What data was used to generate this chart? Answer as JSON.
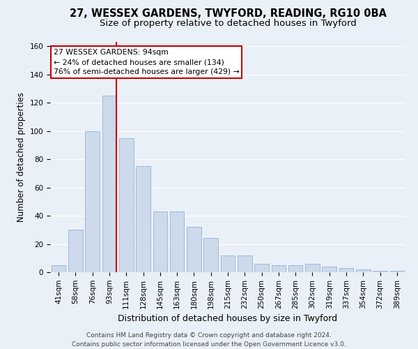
{
  "title_line1": "27, WESSEX GARDENS, TWYFORD, READING, RG10 0BA",
  "title_line2": "Size of property relative to detached houses in Twyford",
  "xlabel": "Distribution of detached houses by size in Twyford",
  "ylabel": "Number of detached properties",
  "categories": [
    "41sqm",
    "58sqm",
    "76sqm",
    "93sqm",
    "111sqm",
    "128sqm",
    "145sqm",
    "163sqm",
    "180sqm",
    "198sqm",
    "215sqm",
    "232sqm",
    "250sqm",
    "267sqm",
    "285sqm",
    "302sqm",
    "319sqm",
    "337sqm",
    "354sqm",
    "372sqm",
    "389sqm"
  ],
  "values": [
    5,
    30,
    100,
    125,
    95,
    75,
    43,
    43,
    32,
    24,
    12,
    12,
    6,
    5,
    5,
    6,
    4,
    3,
    2,
    1,
    1
  ],
  "bar_color": "#ccdaec",
  "bar_edge_color": "#92b4d4",
  "background_color": "#eaf0f8",
  "grid_color": "#ffffff",
  "property_label": "27 WESSEX GARDENS: 94sqm",
  "annotation_line1": "← 24% of detached houses are smaller (134)",
  "annotation_line2": "76% of semi-detached houses are larger (429) →",
  "vline_color": "#cc0000",
  "annotation_box_color": "#cc0000",
  "ylim": [
    0,
    163
  ],
  "yticks": [
    0,
    20,
    40,
    60,
    80,
    100,
    120,
    140,
    160
  ],
  "footer_line1": "Contains HM Land Registry data © Crown copyright and database right 2024.",
  "footer_line2": "Contains public sector information licensed under the Open Government Licence v3.0.",
  "title_fontsize": 10.5,
  "subtitle_fontsize": 9.5,
  "ylabel_fontsize": 8.5,
  "xlabel_fontsize": 9,
  "tick_fontsize": 7.5,
  "annotation_fontsize": 7.8,
  "footer_fontsize": 6.5
}
